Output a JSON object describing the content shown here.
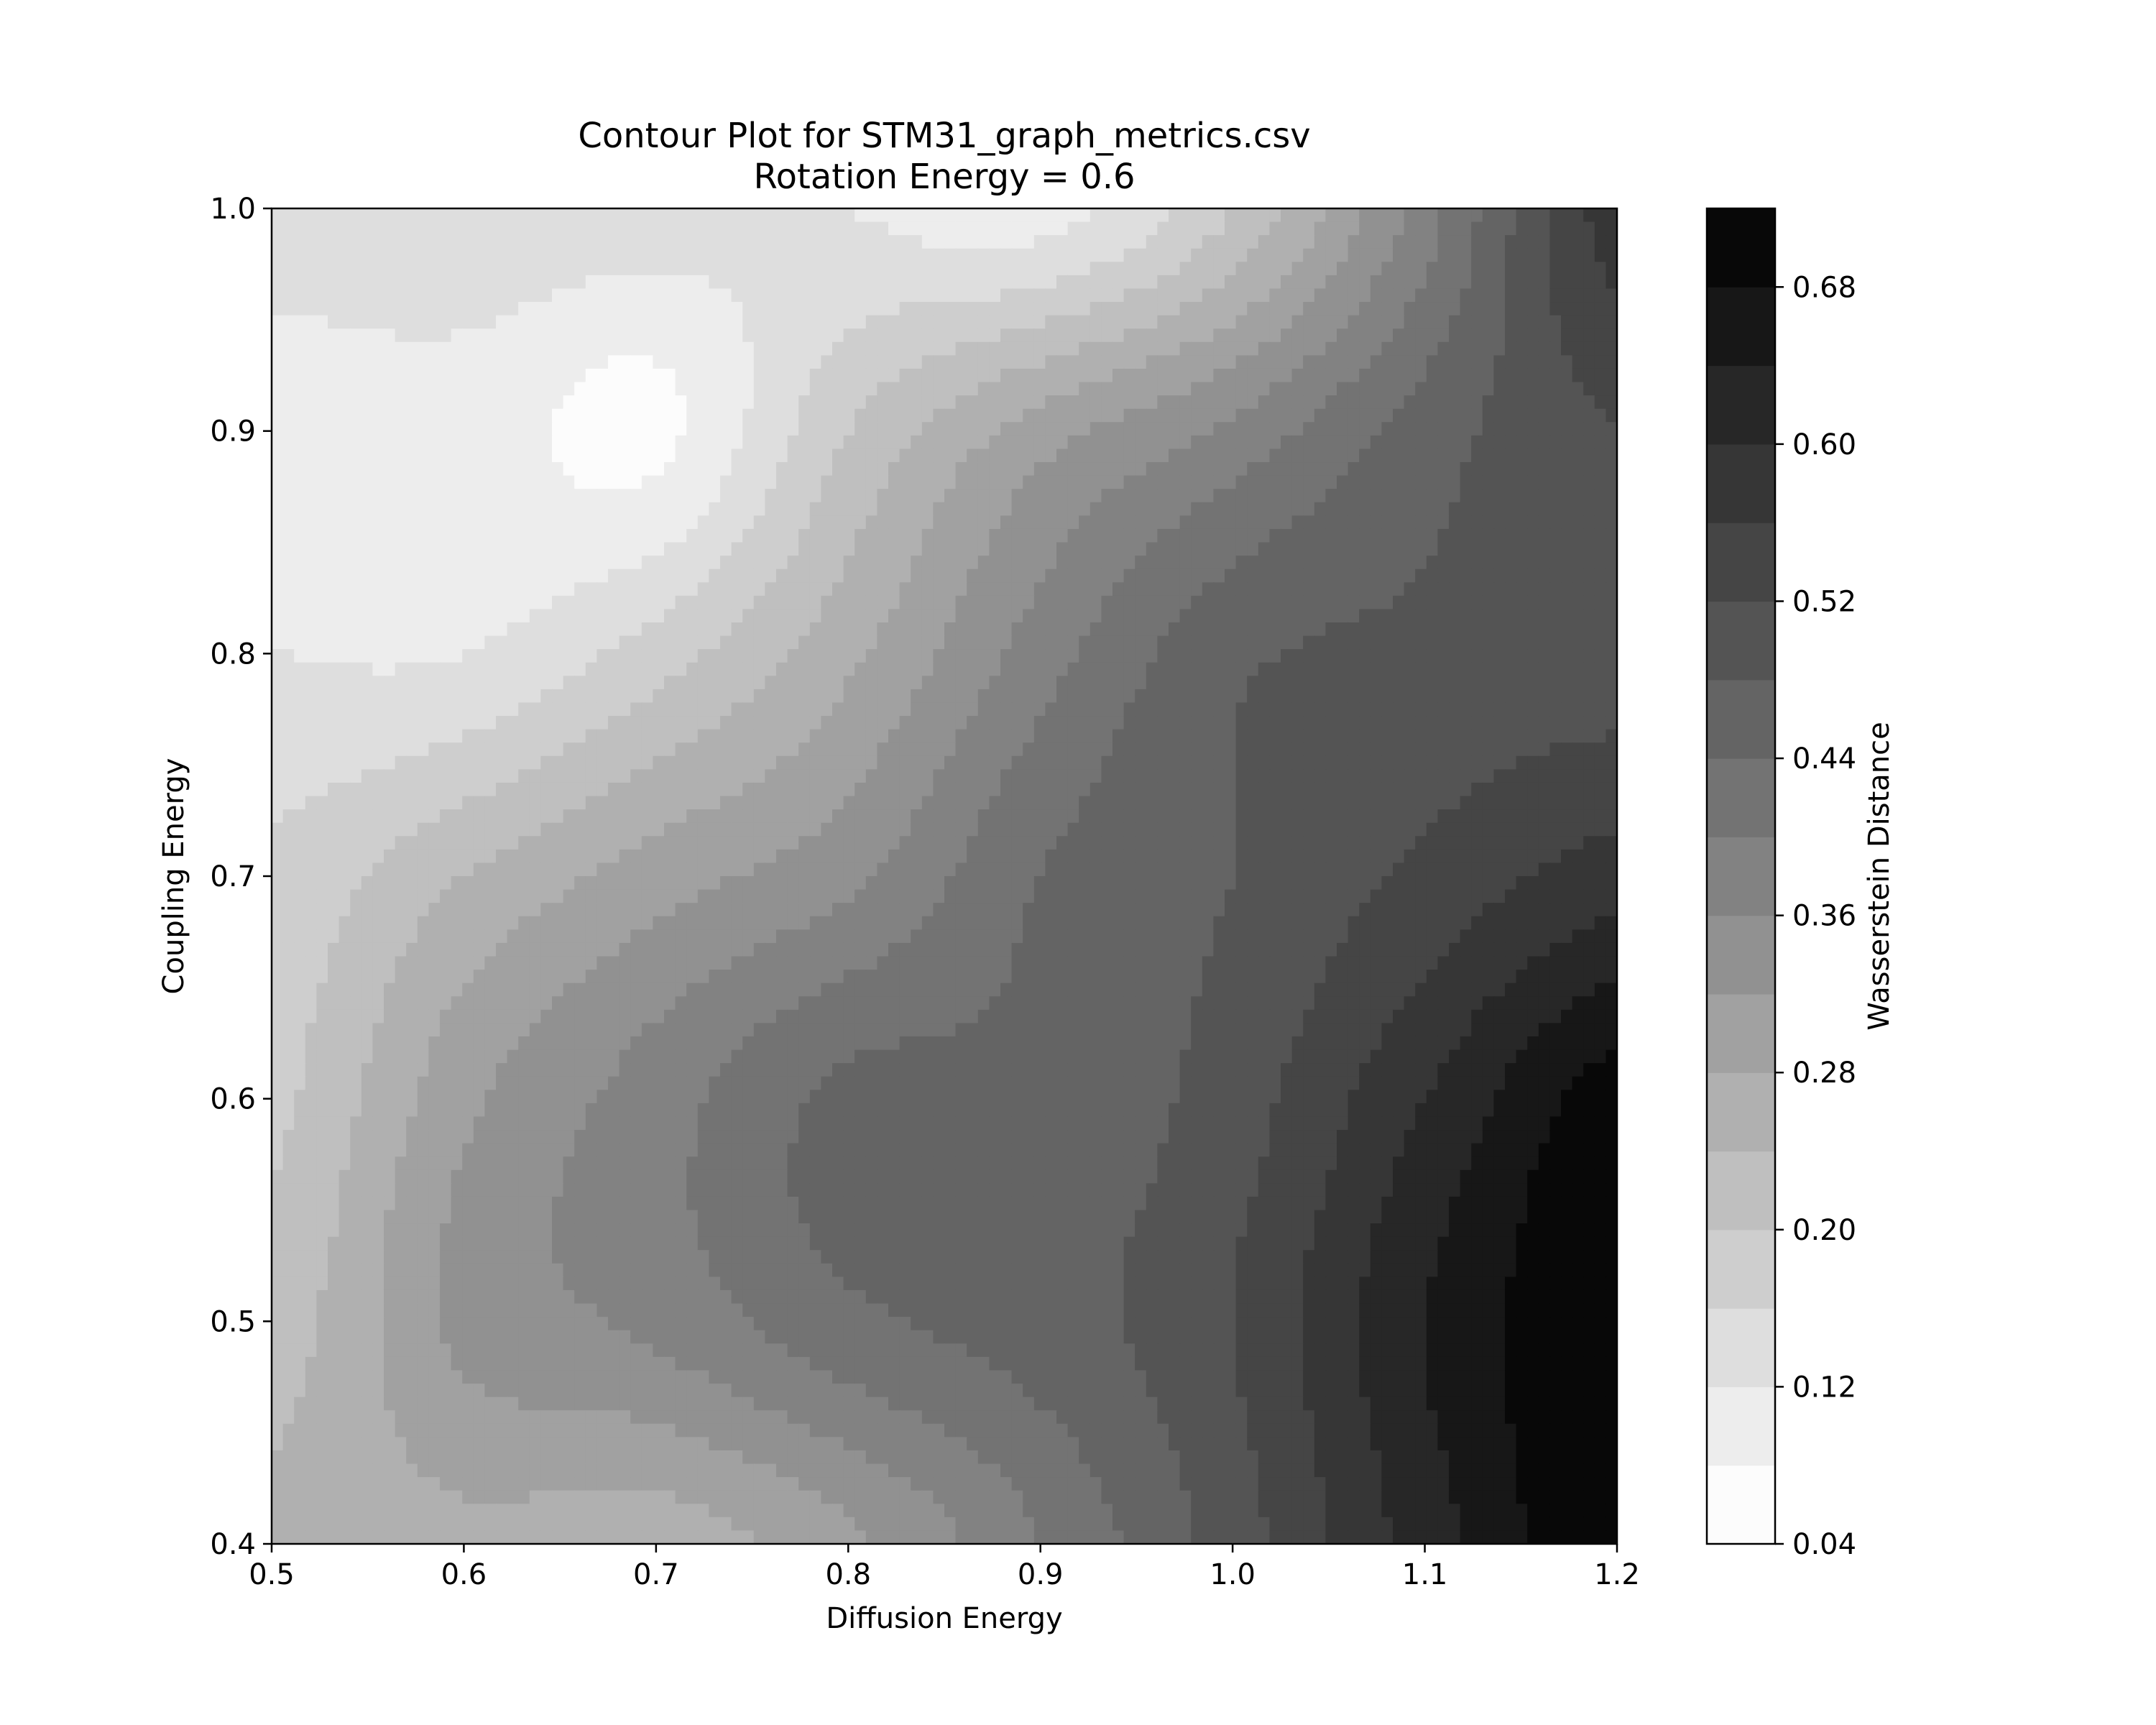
{
  "chart_data": {
    "type": "heatmap",
    "subtype": "filled-contour",
    "title": "Contour Plot for STM31_graph_metrics.csv",
    "subtitle": "Rotation Energy = 0.6",
    "xlabel": "Diffusion Energy",
    "ylabel": "Coupling Energy",
    "xlim": [
      0.5,
      1.2
    ],
    "ylim": [
      0.4,
      1.0
    ],
    "x_ticks": [
      "0.5",
      "0.6",
      "0.7",
      "0.8",
      "0.9",
      "1.0",
      "1.1",
      "1.2"
    ],
    "y_ticks": [
      "0.4",
      "0.5",
      "0.6",
      "0.7",
      "0.8",
      "0.9",
      "1.0"
    ],
    "grid": false,
    "colorbar": {
      "label": "Wasserstein Distance",
      "range": [
        0.04,
        0.72
      ],
      "levels": [
        0.04,
        0.08,
        0.12,
        0.16,
        0.2,
        0.24,
        0.28,
        0.32,
        0.36,
        0.4,
        0.44,
        0.48,
        0.52,
        0.56,
        0.6,
        0.64,
        0.68,
        0.72
      ],
      "ticks": [
        "0.04",
        "0.12",
        "0.20",
        "0.28",
        "0.36",
        "0.44",
        "0.52",
        "0.60",
        "0.68"
      ],
      "colormap": "Greys"
    },
    "x": [
      0.5,
      0.6,
      0.7,
      0.8,
      0.9,
      1.0,
      1.1,
      1.2
    ],
    "y": [
      0.4,
      0.5,
      0.6,
      0.7,
      0.8,
      0.9,
      1.0
    ],
    "z": [
      [
        0.25,
        0.27,
        0.26,
        0.31,
        0.4,
        0.5,
        0.62,
        0.72
      ],
      [
        0.22,
        0.33,
        0.37,
        0.43,
        0.46,
        0.52,
        0.64,
        0.72
      ],
      [
        0.19,
        0.31,
        0.38,
        0.45,
        0.45,
        0.5,
        0.6,
        0.7
      ],
      [
        0.17,
        0.24,
        0.3,
        0.35,
        0.44,
        0.48,
        0.53,
        0.58
      ],
      [
        0.12,
        0.12,
        0.18,
        0.27,
        0.38,
        0.47,
        0.49,
        0.5
      ],
      [
        0.1,
        0.1,
        0.07,
        0.2,
        0.3,
        0.37,
        0.46,
        0.52
      ],
      [
        0.14,
        0.15,
        0.14,
        0.12,
        0.1,
        0.2,
        0.38,
        0.58
      ]
    ]
  }
}
